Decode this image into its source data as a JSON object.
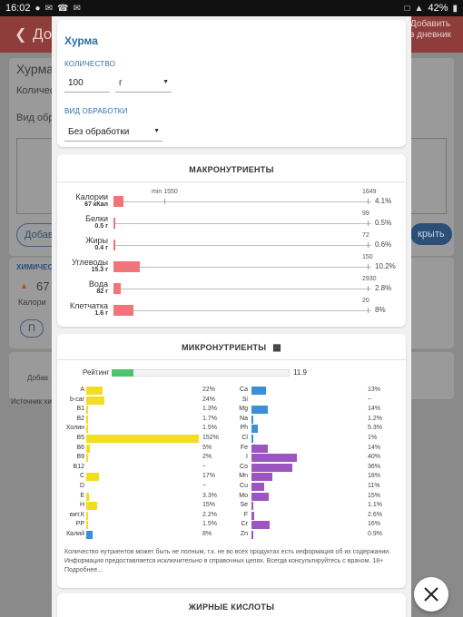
{
  "status_bar": {
    "time": "16:02",
    "battery": "42%"
  },
  "background": {
    "header_title": "До",
    "header_add_button": "Добавить в дневник",
    "food_title": "Хурма",
    "qty_label": "Количес",
    "processing_label": "Вид обраб",
    "add_button": "Добав",
    "close_button": "крыть",
    "chem_label": "ХИМИЧЕС",
    "calorie_value": "67",
    "calorie_label": "Калори",
    "p_button": "П",
    "add_small": "Добав",
    "source_label": "Источник хи"
  },
  "header": {
    "food_name": "Хурма",
    "quantity_label": "КОЛИЧЕСТВО",
    "quantity_value": "100",
    "unit_value": "г",
    "processing_label": "ВИД ОБРАБОТКИ",
    "processing_value": "Без обработки"
  },
  "macros": {
    "title": "МАКРОНУТРИЕНТЫ",
    "rows": [
      {
        "name": "Калории",
        "sub": "67 кКал",
        "value": 67,
        "min": 1550,
        "max": 1649,
        "min_label": "min 1550",
        "max_label": "1649",
        "pct": "4.1%"
      },
      {
        "name": "Белки",
        "sub": "0.5 г",
        "value": 0.5,
        "max": 99,
        "max_label": "99",
        "pct": "0.5%"
      },
      {
        "name": "Жиры",
        "sub": "0.4 г",
        "value": 0.4,
        "max": 72,
        "max_label": "72",
        "pct": "0.6%"
      },
      {
        "name": "Углеводы",
        "sub": "15.3 г",
        "value": 15.3,
        "max": 150,
        "max_label": "150",
        "pct": "10.2%"
      },
      {
        "name": "Вода",
        "sub": "82 г",
        "value": 82,
        "max": 2930,
        "max_label": "2930",
        "pct": "2.8%"
      },
      {
        "name": "Клетчатка",
        "sub": "1.6 г",
        "value": 1.6,
        "max": 20,
        "max_label": "20",
        "pct": "8%"
      }
    ]
  },
  "micros": {
    "title": "МИКРОНУТРИЕНТЫ",
    "rating_label": "Рейтинг",
    "rating_value": "11.9",
    "rating_fraction": 0.12,
    "vitamin_color": "#f2dd1f",
    "mineral_color": "#9b56c2",
    "left": [
      {
        "name": "A",
        "pct": "22%",
        "v": 22,
        "color": "#f2dd1f"
      },
      {
        "name": "b-car",
        "pct": "24%",
        "v": 24,
        "color": "#f2dd1f"
      },
      {
        "name": "B1",
        "pct": "1.3%",
        "v": 1.3,
        "color": "#f2dd1f"
      },
      {
        "name": "B2",
        "pct": "1.7%",
        "v": 1.7,
        "color": "#f2dd1f"
      },
      {
        "name": "Холин",
        "pct": "1.5%",
        "v": 1.5,
        "color": "#f2dd1f"
      },
      {
        "name": "B5",
        "pct": "152%",
        "v": 152,
        "color": "#f2dd1f"
      },
      {
        "name": "B6",
        "pct": "5%",
        "v": 5,
        "color": "#f2dd1f"
      },
      {
        "name": "B9",
        "pct": "2%",
        "v": 2,
        "color": "#f2dd1f"
      },
      {
        "name": "B12",
        "pct": "~",
        "v": 0,
        "color": "#f2dd1f"
      },
      {
        "name": "C",
        "pct": "17%",
        "v": 17,
        "color": "#f2dd1f"
      },
      {
        "name": "D",
        "pct": "~",
        "v": 0,
        "color": "#f2dd1f"
      },
      {
        "name": "E",
        "pct": "3.3%",
        "v": 3.3,
        "color": "#f2dd1f"
      },
      {
        "name": "H",
        "pct": "15%",
        "v": 15,
        "color": "#f2dd1f"
      },
      {
        "name": "вит.К",
        "pct": "2.2%",
        "v": 2.2,
        "color": "#f2dd1f"
      },
      {
        "name": "PP",
        "pct": "1.5%",
        "v": 1.5,
        "color": "#f2dd1f"
      },
      {
        "name": "Калий",
        "pct": "8%",
        "v": 8,
        "color": "#3b8fd6"
      }
    ],
    "right": [
      {
        "name": "Ca",
        "pct": "13%",
        "v": 13,
        "color": "#3b8fd6"
      },
      {
        "name": "Si",
        "pct": "~",
        "v": 0,
        "color": "#3b8fd6"
      },
      {
        "name": "Mg",
        "pct": "14%",
        "v": 14,
        "color": "#3b8fd6"
      },
      {
        "name": "Na",
        "pct": "1.2%",
        "v": 1.2,
        "color": "#3b8fd6"
      },
      {
        "name": "Ph",
        "pct": "5.3%",
        "v": 5.3,
        "color": "#3b8fd6"
      },
      {
        "name": "Cl",
        "pct": "1%",
        "v": 1,
        "color": "#3b8fd6"
      },
      {
        "name": "Fe",
        "pct": "14%",
        "v": 14,
        "color": "#9b56c2"
      },
      {
        "name": "I",
        "pct": "40%",
        "v": 40,
        "color": "#9b56c2"
      },
      {
        "name": "Co",
        "pct": "36%",
        "v": 36,
        "color": "#9b56c2"
      },
      {
        "name": "Mn",
        "pct": "18%",
        "v": 18,
        "color": "#9b56c2"
      },
      {
        "name": "Cu",
        "pct": "11%",
        "v": 11,
        "color": "#9b56c2"
      },
      {
        "name": "Mo",
        "pct": "15%",
        "v": 15,
        "color": "#9b56c2"
      },
      {
        "name": "Se",
        "pct": "1.1%",
        "v": 1.1,
        "color": "#9b56c2"
      },
      {
        "name": "F",
        "pct": "2.6%",
        "v": 2.6,
        "color": "#9b56c2"
      },
      {
        "name": "Cr",
        "pct": "16%",
        "v": 16,
        "color": "#9b56c2"
      },
      {
        "name": "Zn",
        "pct": "0.9%",
        "v": 0.9,
        "color": "#9b56c2"
      }
    ],
    "note": "Количество нутриентов может быть не полным, т.к. не во всех продуктах есть информация об их содержании. Информация предоставляется исключительно в справочных целях. Всегда консультируйтесь с врачом. 18+ Подробнее..."
  },
  "fatty_acids": {
    "title": "ЖИРНЫЕ КИСЛОТЫ"
  },
  "colors": {
    "accent": "#2f6fa5",
    "macro_bar": "#f07478",
    "rating": "#4bc46a",
    "header_bg_dim": "#8e3d3a"
  }
}
